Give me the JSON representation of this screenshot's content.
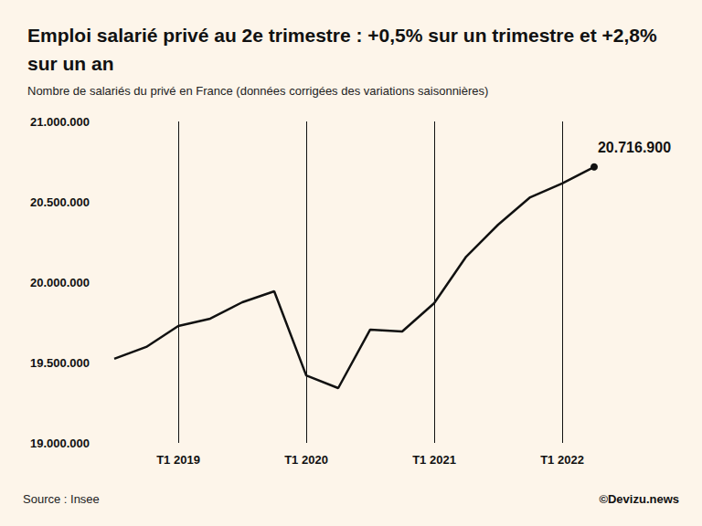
{
  "chart_data": {
    "type": "line",
    "title": "Emploi salarié privé au 2e trimestre : +0,5% sur un trimestre et +2,8% sur un an",
    "subtitle": "Nombre de salariés du privé en France (données corrigées des variations saisonnières)",
    "source": "Source : Insee",
    "credit": "©Devizu.news",
    "categories": [
      null,
      null,
      "T1 2019",
      null,
      null,
      null,
      "T1 2020",
      null,
      null,
      null,
      "T1 2021",
      null,
      null,
      null,
      "T1 2022",
      null
    ],
    "values": [
      19523000,
      19597000,
      19727000,
      19773000,
      19875000,
      19943000,
      19420000,
      19341000,
      19705000,
      19693000,
      19869000,
      20159000,
      20358000,
      20528000,
      20614000,
      20716900
    ],
    "value_labels": [
      null,
      null,
      null,
      null,
      null,
      null,
      null,
      null,
      null,
      null,
      null,
      null,
      null,
      null,
      null,
      "20.716.900"
    ],
    "color": "#111111",
    "ylim": [
      19000000,
      21000000
    ],
    "yticks": [
      {
        "value": 19000000,
        "label": "19.000.000"
      },
      {
        "value": 19500000,
        "label": "19.500.000"
      },
      {
        "value": 20000000,
        "label": "20.000.000"
      },
      {
        "value": 20500000,
        "label": "20.500.000"
      },
      {
        "value": 21000000,
        "label": "21.000.000"
      }
    ],
    "grid": true
  }
}
